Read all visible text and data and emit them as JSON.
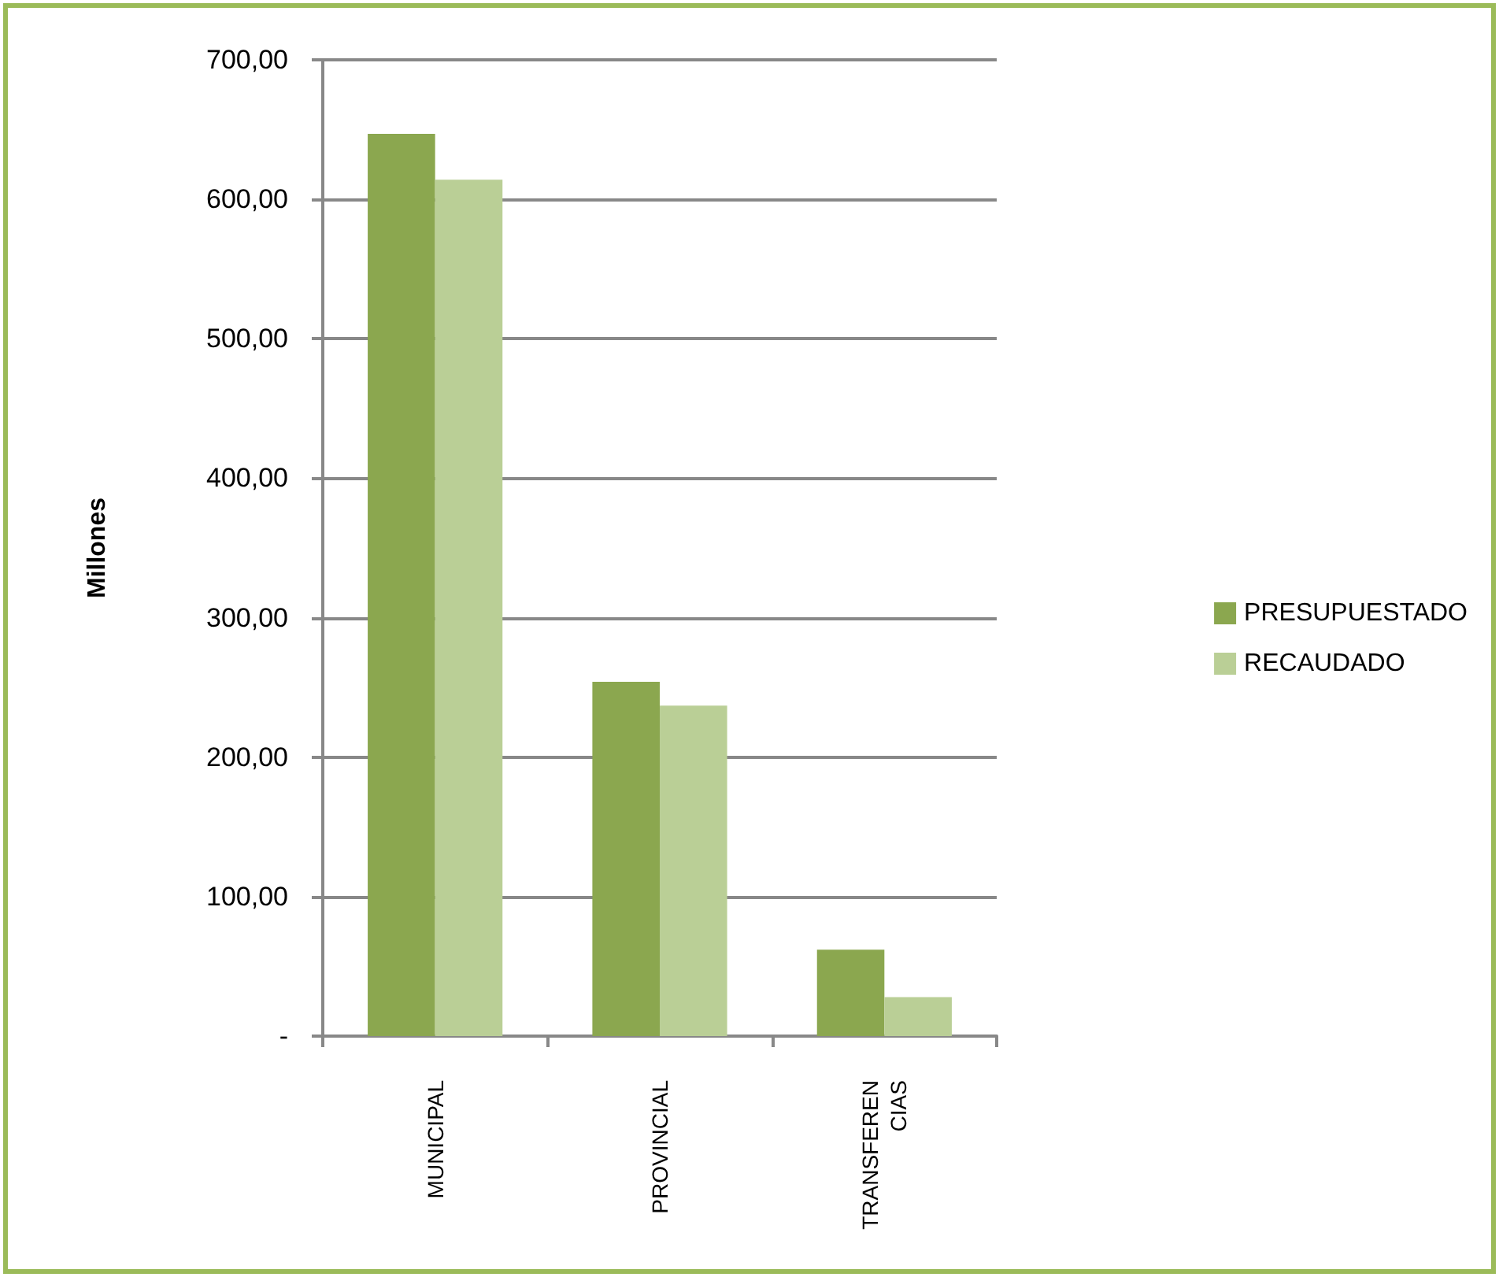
{
  "chart_data": {
    "type": "bar",
    "ylabel": "Millones",
    "categories": [
      "MUNICIPAL",
      "PROVINCIAL",
      "TRANSFERENCIAS"
    ],
    "series": [
      {
        "name": "PRESUPUESTADO",
        "color": "#8ba74f",
        "values": [
          647,
          254,
          62
        ]
      },
      {
        "name": "RECAUDADO",
        "color": "#bacf96",
        "values": [
          614,
          237,
          28
        ]
      }
    ],
    "ylim": [
      0,
      700
    ],
    "yticks": [
      {
        "value": 0,
        "label": "-"
      },
      {
        "value": 100,
        "label": "100,00"
      },
      {
        "value": 200,
        "label": "200,00"
      },
      {
        "value": 300,
        "label": "300,00"
      },
      {
        "value": 400,
        "label": "400,00"
      },
      {
        "value": 500,
        "label": "500,00"
      },
      {
        "value": 600,
        "label": "600,00"
      },
      {
        "value": 700,
        "label": "700,00"
      }
    ],
    "grid": "y",
    "legend": "right"
  }
}
